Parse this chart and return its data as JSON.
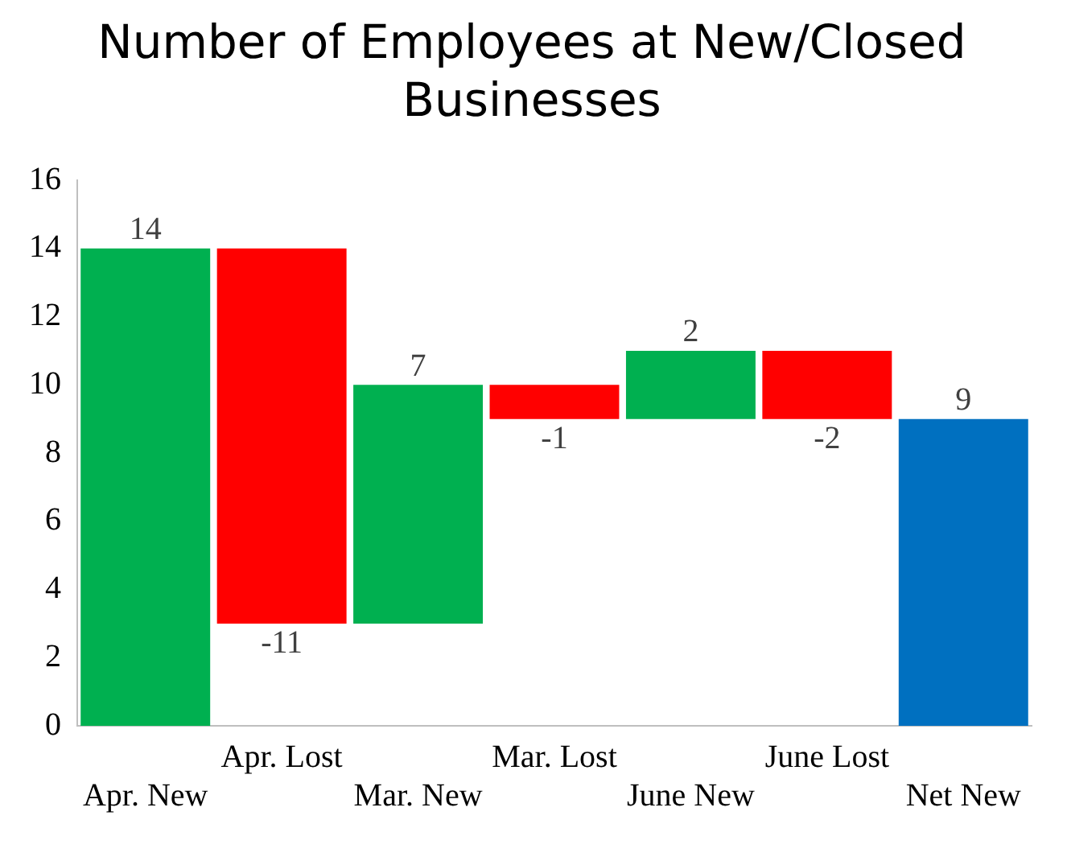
{
  "chart_data": {
    "type": "bar",
    "title": "Number of Employees at New/Closed Businesses",
    "categories": [
      "Apr. New",
      "Apr. Lost",
      "Mar. New",
      "Mar. Lost",
      "June New",
      "June Lost",
      "Net New"
    ],
    "values": [
      14,
      -11,
      7,
      -1,
      2,
      -2,
      9
    ],
    "base": [
      0,
      14,
      3,
      10,
      9,
      11,
      0
    ],
    "colors": [
      "#00b050",
      "#ff0000",
      "#00b050",
      "#ff0000",
      "#00b050",
      "#ff0000",
      "#0070c0"
    ],
    "ylim": [
      0,
      16
    ],
    "yticks": [
      0,
      2,
      4,
      6,
      8,
      10,
      12,
      14,
      16
    ],
    "grid": false,
    "legend": false,
    "data_labels": true
  }
}
